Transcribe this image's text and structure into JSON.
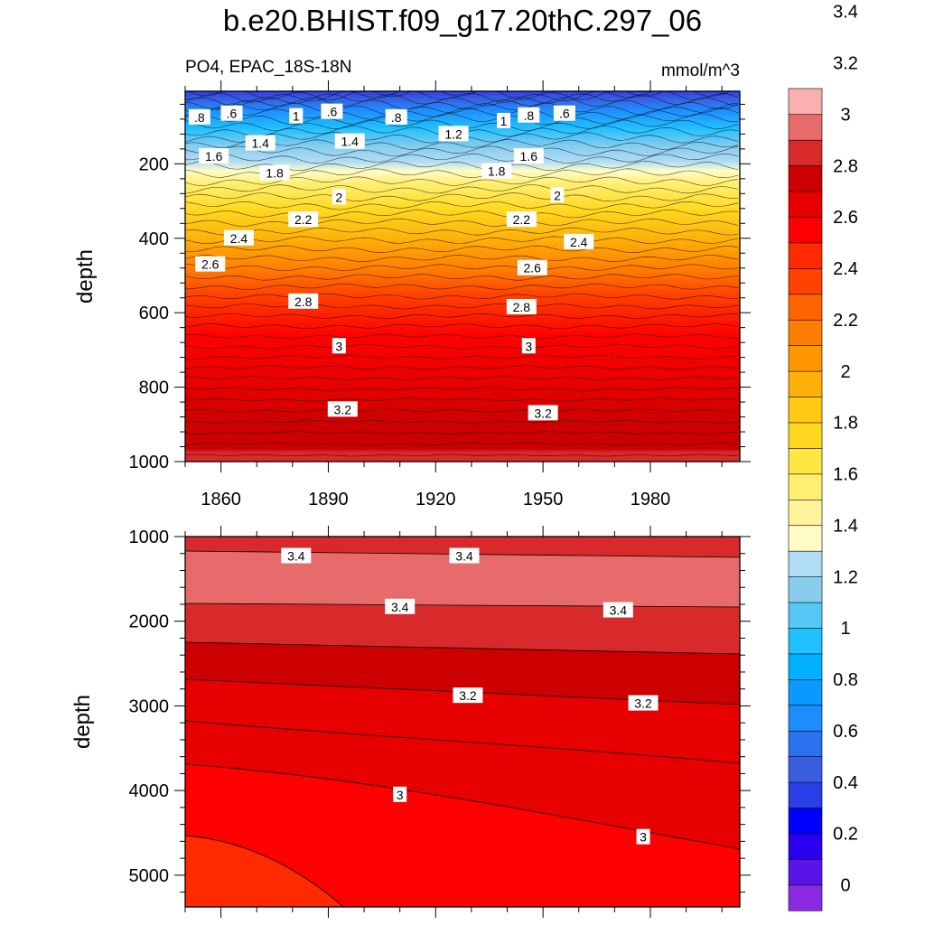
{
  "title": "b.e20.BHIST.f09_g17.20thC.297_06",
  "subtitle_left": "PO4, EPAC_18S-18N",
  "subtitle_right": "mmol/m^3",
  "chart_data": [
    {
      "type": "heatmap",
      "panel": "upper",
      "ylabel": "depth",
      "xlabel": "",
      "x_ticks": [
        1860,
        1890,
        1920,
        1950,
        1980
      ],
      "y_ticks": [
        200,
        400,
        600,
        800,
        1000
      ],
      "xlim": [
        1850,
        2005
      ],
      "ylim": [
        1000,
        5
      ],
      "contour_labels": [
        {
          "text": ".8",
          "x": 1854,
          "y": 75
        },
        {
          "text": ".6",
          "x": 1863,
          "y": 65
        },
        {
          "text": "1",
          "x": 1881,
          "y": 72
        },
        {
          "text": ".6",
          "x": 1891,
          "y": 60
        },
        {
          "text": ".8",
          "x": 1909,
          "y": 75
        },
        {
          "text": "1",
          "x": 1939,
          "y": 85
        },
        {
          "text": ".8",
          "x": 1946,
          "y": 70
        },
        {
          "text": ".6",
          "x": 1956,
          "y": 65
        },
        {
          "text": "1.4",
          "x": 1871,
          "y": 145
        },
        {
          "text": "1.4",
          "x": 1896,
          "y": 140
        },
        {
          "text": "1.2",
          "x": 1925,
          "y": 120
        },
        {
          "text": "1.6",
          "x": 1858,
          "y": 180
        },
        {
          "text": "1.6",
          "x": 1946,
          "y": 180
        },
        {
          "text": "1.8",
          "x": 1875,
          "y": 225
        },
        {
          "text": "1.8",
          "x": 1937,
          "y": 220
        },
        {
          "text": "2",
          "x": 1893,
          "y": 290
        },
        {
          "text": "2",
          "x": 1954,
          "y": 285
        },
        {
          "text": "2.2",
          "x": 1883,
          "y": 350
        },
        {
          "text": "2.2",
          "x": 1944,
          "y": 350
        },
        {
          "text": "2.4",
          "x": 1865,
          "y": 400
        },
        {
          "text": "2.4",
          "x": 1960,
          "y": 410
        },
        {
          "text": "2.6",
          "x": 1857,
          "y": 470
        },
        {
          "text": "2.6",
          "x": 1947,
          "y": 480
        },
        {
          "text": "2.8",
          "x": 1883,
          "y": 570
        },
        {
          "text": "2.8",
          "x": 1944,
          "y": 585
        },
        {
          "text": "3",
          "x": 1893,
          "y": 690
        },
        {
          "text": "3",
          "x": 1946,
          "y": 690
        },
        {
          "text": "3.2",
          "x": 1894,
          "y": 860
        },
        {
          "text": "3.2",
          "x": 1950,
          "y": 870
        }
      ]
    },
    {
      "type": "heatmap",
      "panel": "lower",
      "ylabel": "depth",
      "xlabel": "",
      "y_ticks": [
        1000,
        2000,
        3000,
        4000,
        5000
      ],
      "xlim": [
        1850,
        2005
      ],
      "ylim": [
        5375,
        1000
      ],
      "contour_labels": [
        {
          "text": "3.4",
          "x": 1881,
          "y": 1230
        },
        {
          "text": "3.4",
          "x": 1928,
          "y": 1230
        },
        {
          "text": "3.4",
          "x": 1910,
          "y": 1830
        },
        {
          "text": "3.4",
          "x": 1971,
          "y": 1870
        },
        {
          "text": "3.2",
          "x": 1929,
          "y": 2880
        },
        {
          "text": "3.2",
          "x": 1978,
          "y": 2970
        },
        {
          "text": "3",
          "x": 1910,
          "y": 4050
        },
        {
          "text": "3",
          "x": 1978,
          "y": 4550
        }
      ]
    }
  ],
  "colorbar": {
    "labels": [
      "0",
      "0.2",
      "0.4",
      "0.6",
      "0.8",
      "1",
      "1.2",
      "1.4",
      "1.6",
      "1.8",
      "2",
      "2.2",
      "2.4",
      "2.6",
      "2.8",
      "3",
      "3.2",
      "3.4"
    ],
    "colors": [
      "#8a2be2",
      "#5a14e8",
      "#2a00f0",
      "#0000ff",
      "#2a3ee8",
      "#3a5ee0",
      "#2a72ee",
      "#1e8cff",
      "#0a9aff",
      "#00b0ff",
      "#20c0ff",
      "#55c8f5",
      "#88ccee",
      "#b0dcf5",
      "#fffcc8",
      "#fff49a",
      "#ffef70",
      "#ffe640",
      "#ffd820",
      "#ffc814",
      "#ffb00a",
      "#ff9600",
      "#ff7d00",
      "#ff6400",
      "#ff4200",
      "#ff2a00",
      "#ff0000",
      "#e60000",
      "#cc0000",
      "#d82a2a",
      "#e86b6b",
      "#fbb0b0"
    ]
  }
}
